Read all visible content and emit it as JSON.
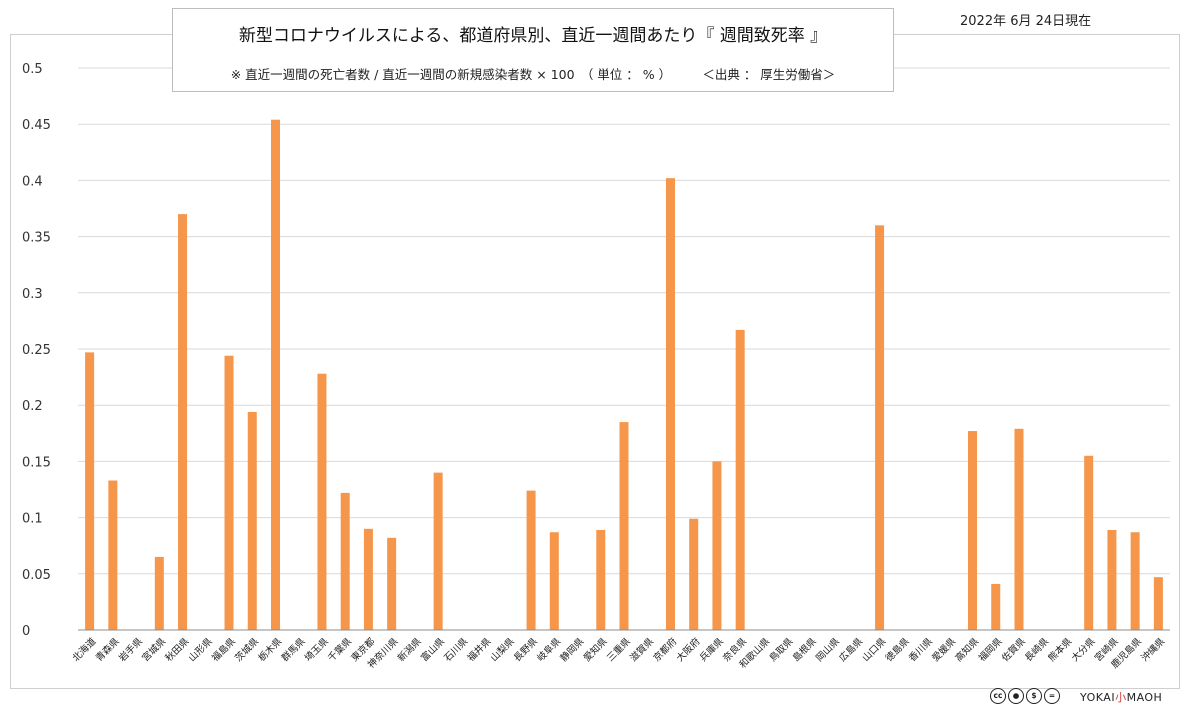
{
  "title": "新型コロナウイルスによる、都道府県別、直近一週間あたり『 週間致死率 』",
  "subtitle": "※ 直近一週間の死亡者数 / 直近一週間の新規感染者数 × 100　（ 単位 ： % ）　　　＜出典 ： 厚生労働省＞",
  "date": "2022年 6月 24日現在",
  "brand": {
    "left": "YOKAI",
    "mid": "小",
    "right": "MAOH"
  },
  "license_icons": [
    "cc-icon",
    "by-icon",
    "nc-icon",
    "nd-icon"
  ],
  "colors": {
    "bar": "#F5964A",
    "grid": "#d9d9d9",
    "axis": "#8c8c8c"
  },
  "chart_data": {
    "type": "bar",
    "title": "新型コロナウイルスによる、都道府県別、直近一週間あたり『 週間致死率 』",
    "ylabel": "",
    "xlabel": "",
    "ylim": [
      0,
      0.5
    ],
    "yticks": [
      0,
      0.05,
      0.1,
      0.15,
      0.2,
      0.25,
      0.3,
      0.35,
      0.4,
      0.45,
      0.5
    ],
    "ytick_labels": [
      "0",
      "0.05",
      "0.1",
      "0.15",
      "0.2",
      "0.25",
      "0.3",
      "0.35",
      "0.4",
      "0.45",
      "0.5"
    ],
    "grid": true,
    "legend": "none",
    "categories": [
      "北海道",
      "青森県",
      "岩手県",
      "宮城県",
      "秋田県",
      "山形県",
      "福島県",
      "茨城県",
      "栃木県",
      "群馬県",
      "埼玉県",
      "千葉県",
      "東京都",
      "神奈川県",
      "新潟県",
      "富山県",
      "石川県",
      "福井県",
      "山梨県",
      "長野県",
      "岐阜県",
      "静岡県",
      "愛知県",
      "三重県",
      "滋賀県",
      "京都府",
      "大阪府",
      "兵庫県",
      "奈良県",
      "和歌山県",
      "鳥取県",
      "島根県",
      "岡山県",
      "広島県",
      "山口県",
      "徳島県",
      "香川県",
      "愛媛県",
      "高知県",
      "福岡県",
      "佐賀県",
      "長崎県",
      "熊本県",
      "大分県",
      "宮崎県",
      "鹿児島県",
      "沖縄県"
    ],
    "values": [
      0.247,
      0.133,
      0,
      0.065,
      0.37,
      0,
      0.244,
      0.194,
      0.454,
      0,
      0.228,
      0.122,
      0.09,
      0.082,
      0,
      0.14,
      0,
      0,
      0,
      0.124,
      0.087,
      0,
      0.089,
      0.185,
      0,
      0.402,
      0.099,
      0.15,
      0.267,
      0,
      0,
      0,
      0,
      0,
      0.36,
      0,
      0,
      0,
      0.177,
      0.041,
      0.179,
      0,
      0,
      0.155,
      0.089,
      0.087,
      0.047
    ]
  }
}
